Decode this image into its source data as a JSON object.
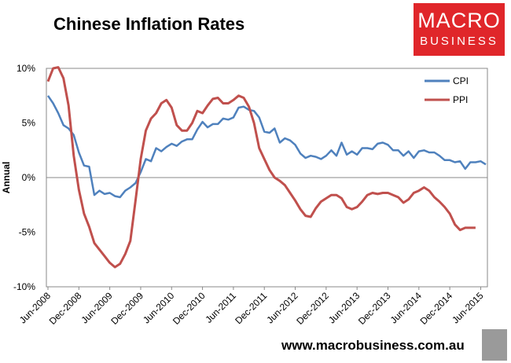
{
  "title": "Chinese Inflation Rates",
  "logo": {
    "line1": "MACRO",
    "line2": "BUSINESS"
  },
  "footer_url": "www.macrobusiness.com.au",
  "colors": {
    "cpi": "#4f81bd",
    "ppi": "#c0504d",
    "brand": "#e0262a"
  },
  "chart_data": {
    "type": "line",
    "title": "Chinese Inflation Rates",
    "ylabel": "Annual",
    "ylim": [
      -10,
      10
    ],
    "y_ticks": [
      "10%",
      "5%",
      "0%",
      "-5%",
      "-10%"
    ],
    "y_tick_values": [
      10,
      5,
      0,
      -5,
      -10
    ],
    "x_ticks": [
      "Jun-2008",
      "Dec-2008",
      "Jun-2009",
      "Dec-2009",
      "Jun-2010",
      "Dec-2010",
      "Jun-2011",
      "Dec-2011",
      "Jun-2012",
      "Dec-2012",
      "Jun-2013",
      "Dec-2013",
      "Jun-2014",
      "Dec-2014",
      "Jun-2015"
    ],
    "legend_position": "top-right",
    "series": [
      {
        "name": "CPI",
        "color": "#4f81bd",
        "values": [
          7.5,
          6.8,
          5.9,
          4.8,
          4.5,
          3.9,
          2.3,
          1.1,
          1.0,
          -1.6,
          -1.2,
          -1.5,
          -1.4,
          -1.7,
          -1.8,
          -1.2,
          -0.9,
          -0.5,
          0.5,
          1.7,
          1.5,
          2.7,
          2.4,
          2.8,
          3.1,
          2.9,
          3.3,
          3.5,
          3.5,
          4.4,
          5.1,
          4.6,
          4.9,
          4.9,
          5.4,
          5.3,
          5.5,
          6.4,
          6.5,
          6.2,
          6.1,
          5.5,
          4.2,
          4.1,
          4.5,
          3.2,
          3.6,
          3.4,
          3.0,
          2.2,
          1.8,
          2.0,
          1.9,
          1.7,
          2.0,
          2.5,
          2.0,
          3.2,
          2.1,
          2.4,
          2.1,
          2.7,
          2.7,
          2.6,
          3.1,
          3.2,
          3.0,
          2.5,
          2.5,
          2.0,
          2.4,
          1.8,
          2.4,
          2.5,
          2.3,
          2.3,
          2.0,
          1.6,
          1.6,
          1.4,
          1.5,
          0.8,
          1.4,
          1.4,
          1.5,
          1.2
        ],
        "x_start": "Jun-2008",
        "x_step": "1 month"
      },
      {
        "name": "PPI",
        "color": "#c0504d",
        "values": [
          8.8,
          10.0,
          10.1,
          9.1,
          6.6,
          2.0,
          -1.1,
          -3.3,
          -4.5,
          -6.0,
          -6.6,
          -7.2,
          -7.8,
          -8.2,
          -7.9,
          -7.0,
          -5.8,
          -2.1,
          1.7,
          4.3,
          5.4,
          5.9,
          6.8,
          7.1,
          6.4,
          4.8,
          4.3,
          4.3,
          5.0,
          6.1,
          5.9,
          6.6,
          7.2,
          7.3,
          6.8,
          6.8,
          7.1,
          7.5,
          7.3,
          6.5,
          5.0,
          2.7,
          1.7,
          0.7,
          0.0,
          -0.3,
          -0.7,
          -1.4,
          -2.1,
          -2.9,
          -3.5,
          -3.6,
          -2.8,
          -2.2,
          -1.9,
          -1.6,
          -1.6,
          -1.9,
          -2.7,
          -2.9,
          -2.7,
          -2.2,
          -1.6,
          -1.4,
          -1.5,
          -1.4,
          -1.4,
          -1.6,
          -1.8,
          -2.3,
          -2.0,
          -1.4,
          -1.2,
          -0.9,
          -1.2,
          -1.8,
          -2.2,
          -2.7,
          -3.3,
          -4.3,
          -4.8,
          -4.6,
          -4.6,
          -4.6
        ],
        "x_start": "Jun-2008",
        "x_step": "1 month"
      }
    ]
  }
}
